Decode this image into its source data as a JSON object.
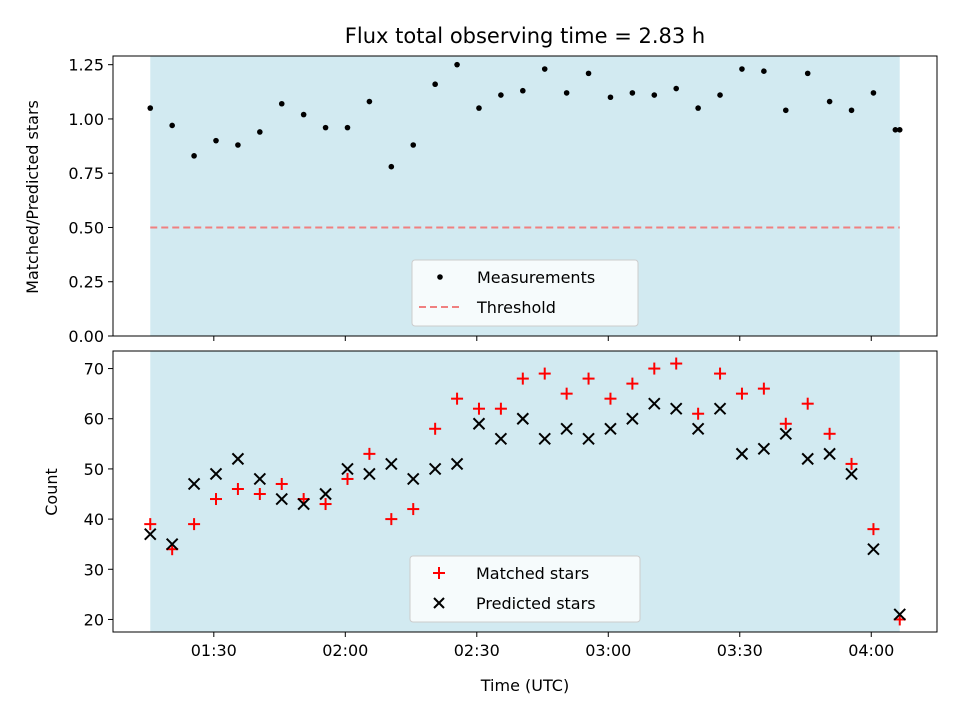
{
  "chart_data": [
    {
      "type": "scatter",
      "title": "Flux total observing time = 2.83 h",
      "xlabel": "",
      "ylabel": "Matched/Predicted stars",
      "ylim": [
        0,
        1.29
      ],
      "yticks": [
        "0.00",
        "0.25",
        "0.50",
        "0.75",
        "1.00",
        "1.25"
      ],
      "ytick_values": [
        0,
        0.25,
        0.5,
        0.75,
        1.0,
        1.25
      ],
      "xlim_minutes": [
        67,
        255
      ],
      "shaded_span_minutes": [
        75.5,
        246.5
      ],
      "shade_color": "#add8e6",
      "threshold": {
        "value": 0.5,
        "label": "Threshold",
        "color": "#f08080"
      },
      "series": [
        {
          "name": "Measurements",
          "marker": "dot",
          "color": "#000000",
          "x_minutes": [
            75.5,
            80.5,
            85.5,
            90.5,
            95.5,
            100.5,
            105.5,
            110.5,
            115.5,
            120.5,
            125.5,
            130.5,
            135.5,
            140.5,
            145.5,
            150.5,
            155.5,
            160.5,
            165.5,
            170.5,
            175.5,
            180.5,
            185.5,
            190.5,
            195.5,
            200.5,
            205.5,
            210.5,
            215.5,
            220.5,
            225.5,
            230.5,
            235.5,
            240.5,
            245.5,
            246.5
          ],
          "values": [
            1.05,
            0.97,
            0.83,
            0.9,
            0.88,
            0.94,
            1.07,
            1.02,
            0.96,
            0.96,
            1.08,
            0.78,
            0.88,
            1.16,
            1.25,
            1.05,
            1.11,
            1.13,
            1.23,
            1.12,
            1.21,
            1.1,
            1.12,
            1.11,
            1.14,
            1.05,
            1.11,
            1.23,
            1.22,
            1.04,
            1.21,
            1.08,
            1.04,
            1.12,
            0.95,
            0.95
          ]
        }
      ],
      "legend": {
        "placement": "bottom-center",
        "entries": [
          "Measurements",
          "Threshold"
        ]
      }
    },
    {
      "type": "scatter",
      "title": "",
      "xlabel": "Time (UTC)",
      "ylabel": "Count",
      "ylim": [
        17.5,
        73.5
      ],
      "yticks": [
        "20",
        "30",
        "40",
        "50",
        "60",
        "70"
      ],
      "ytick_values": [
        20,
        30,
        40,
        50,
        60,
        70
      ],
      "xticks": [
        "01:30",
        "02:00",
        "02:30",
        "03:00",
        "03:30",
        "04:00"
      ],
      "xtick_minutes": [
        90,
        120,
        150,
        180,
        210,
        240
      ],
      "xlim_minutes": [
        67,
        255
      ],
      "shaded_span_minutes": [
        75.5,
        246.5
      ],
      "shade_color": "#add8e6",
      "series": [
        {
          "name": "Matched stars",
          "marker": "plus",
          "color": "#ff0000",
          "x_minutes": [
            75.5,
            80.5,
            85.5,
            90.5,
            95.5,
            100.5,
            105.5,
            110.5,
            115.5,
            120.5,
            125.5,
            130.5,
            135.5,
            140.5,
            145.5,
            150.5,
            155.5,
            160.5,
            165.5,
            170.5,
            175.5,
            180.5,
            185.5,
            190.5,
            195.5,
            200.5,
            205.5,
            210.5,
            215.5,
            220.5,
            225.5,
            230.5,
            235.5,
            240.5,
            246.5
          ],
          "values": [
            39,
            34,
            39,
            44,
            46,
            45,
            47,
            44,
            43,
            48,
            53,
            40,
            42,
            58,
            64,
            62,
            62,
            68,
            69,
            65,
            68,
            64,
            67,
            70,
            71,
            61,
            69,
            65,
            66,
            59,
            63,
            57,
            51,
            38,
            20
          ]
        },
        {
          "name": "Predicted stars",
          "marker": "x",
          "color": "#000000",
          "x_minutes": [
            75.5,
            80.5,
            85.5,
            90.5,
            95.5,
            100.5,
            105.5,
            110.5,
            115.5,
            120.5,
            125.5,
            130.5,
            135.5,
            140.5,
            145.5,
            150.5,
            155.5,
            160.5,
            165.5,
            170.5,
            175.5,
            180.5,
            185.5,
            190.5,
            195.5,
            200.5,
            205.5,
            210.5,
            215.5,
            220.5,
            225.5,
            230.5,
            235.5,
            240.5,
            246.5
          ],
          "values": [
            37,
            35,
            47,
            49,
            52,
            48,
            44,
            43,
            45,
            50,
            49,
            51,
            48,
            50,
            51,
            59,
            56,
            60,
            56,
            58,
            56,
            58,
            60,
            63,
            62,
            58,
            62,
            53,
            54,
            57,
            52,
            53,
            49,
            34,
            21
          ]
        }
      ],
      "legend": {
        "placement": "bottom-center",
        "entries": [
          "Matched stars",
          "Predicted stars"
        ]
      }
    }
  ]
}
